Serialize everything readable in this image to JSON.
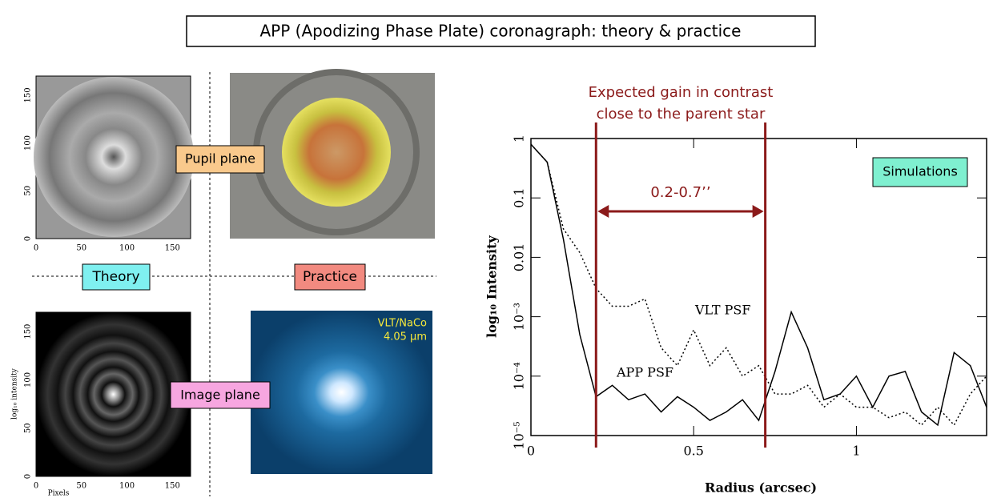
{
  "title": "APP (Apodizing Phase Plate) coronagraph: theory & practice",
  "labels": {
    "pupil_plane": "Pupil plane",
    "image_plane": "Image plane",
    "theory": "Theory",
    "practice": "Practice",
    "instrument": "VLT/NaCo",
    "wavelength": "4.05 µm"
  },
  "theory_axes": {
    "ticks": [
      0,
      50,
      100,
      150
    ],
    "xlabel": "Pixels",
    "ylabel": "log₁₀ intensity"
  },
  "chart_data": {
    "type": "line",
    "annotation": [
      "Expected gain in contrast",
      "close to the parent star"
    ],
    "range_label": "0.2-0.7’’",
    "range": [
      0.2,
      0.72
    ],
    "box_label": "Simulations",
    "xlabel": "Radius (arcsec)",
    "ylabel": "log₁₀ Intensity",
    "log_y": true,
    "xlim": [
      0,
      1.4
    ],
    "xticks": [
      0,
      0.5,
      1
    ],
    "ylim": [
      1e-05,
      1
    ],
    "yticks": [
      1,
      0.1,
      0.01,
      {
        "value": 0.001,
        "label": "10⁻³"
      },
      {
        "value": 0.0001,
        "label": "10⁻⁴"
      },
      {
        "value": 1e-05,
        "label": "10⁻⁵"
      }
    ],
    "x": [
      0,
      0.05,
      0.1,
      0.15,
      0.2,
      0.25,
      0.3,
      0.35,
      0.4,
      0.45,
      0.5,
      0.55,
      0.6,
      0.65,
      0.7,
      0.75,
      0.8,
      0.85,
      0.9,
      0.95,
      1.0,
      1.05,
      1.1,
      1.15,
      1.2,
      1.25,
      1.3,
      1.35,
      1.4
    ],
    "series": [
      {
        "name": "APP PSF",
        "color": "#000000",
        "dash": "solid",
        "values": [
          0.8,
          0.4,
          0.02,
          0.0005,
          4.5e-05,
          7e-05,
          4e-05,
          5e-05,
          2.5e-05,
          4.5e-05,
          3e-05,
          1.8e-05,
          2.5e-05,
          4e-05,
          1.8e-05,
          0.00012,
          0.0012,
          0.0003,
          4e-05,
          5e-05,
          0.0001,
          3e-05,
          0.0001,
          0.00012,
          2.5e-05,
          1.5e-05,
          0.00025,
          0.00015,
          3e-05
        ]
      },
      {
        "name": "VLT PSF",
        "color": "#000000",
        "dash": "dotted",
        "values": [
          0.8,
          0.4,
          0.03,
          0.012,
          0.003,
          0.0015,
          0.0015,
          0.002,
          0.0003,
          0.00015,
          0.0006,
          0.00015,
          0.0003,
          0.0001,
          0.00015,
          5e-05,
          5e-05,
          7e-05,
          3e-05,
          5e-05,
          3e-05,
          3e-05,
          2e-05,
          2.5e-05,
          1.5e-05,
          3e-05,
          1.5e-05,
          5e-05,
          0.0001
        ]
      }
    ]
  }
}
